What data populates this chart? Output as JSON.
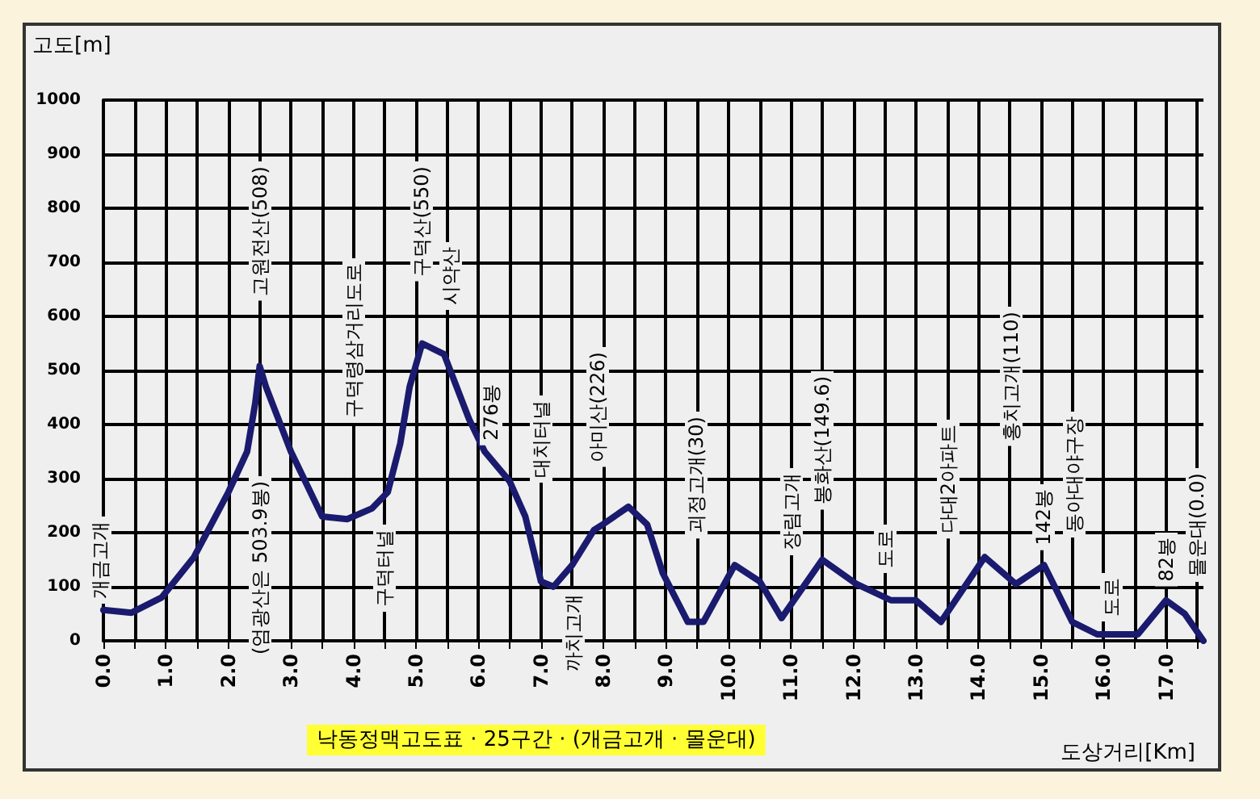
{
  "chart_data": {
    "type": "line",
    "title": "낙동정맥고도표 · 25구간 · (개금고개 · 몰운대)",
    "xlabel": "도상거리[Km]",
    "ylabel": "고도[m]",
    "x": [
      0,
      0.45,
      0.93,
      1.45,
      2.0,
      2.3,
      2.43,
      2.5,
      2.6,
      3.0,
      3.5,
      3.9,
      4.3,
      4.55,
      4.75,
      4.9,
      5.1,
      5.45,
      5.85,
      6.1,
      6.5,
      6.75,
      7.0,
      7.2,
      7.5,
      7.85,
      8.0,
      8.4,
      8.7,
      8.95,
      9.35,
      9.6,
      10.1,
      10.5,
      10.85,
      11.5,
      12.05,
      12.6,
      13.0,
      13.4,
      14.1,
      14.6,
      15.05,
      15.5,
      15.9,
      16.55,
      17.0,
      17.3,
      17.6
    ],
    "series": [
      {
        "color": "#1a1a6e",
        "values": [
          57,
          52,
          80,
          155,
          275,
          350,
          440,
          508,
          470,
          350,
          230,
          225,
          245,
          275,
          365,
          470,
          550,
          530,
          410,
          350,
          295,
          230,
          110,
          100,
          140,
          205,
          216,
          248,
          215,
          125,
          35,
          35,
          140,
          110,
          42,
          150,
          105,
          75,
          75,
          35,
          155,
          105,
          140,
          35,
          12,
          12,
          75,
          50,
          0
        ]
      }
    ],
    "xlim": [
      0,
      17.6
    ],
    "ylim": [
      0,
      1000
    ],
    "xticks": [
      {
        "value": 0,
        "label": "0.0"
      },
      {
        "value": 0.5,
        "label": null
      },
      {
        "value": 1,
        "label": "1.0"
      },
      {
        "value": 1.5,
        "label": null
      },
      {
        "value": 2,
        "label": "2.0"
      },
      {
        "value": 2.5,
        "label": null
      },
      {
        "value": 3,
        "label": "3.0"
      },
      {
        "value": 3.5,
        "label": null
      },
      {
        "value": 4,
        "label": "4.0"
      },
      {
        "value": 4.5,
        "label": null
      },
      {
        "value": 5,
        "label": "5.0"
      },
      {
        "value": 5.5,
        "label": null
      },
      {
        "value": 6,
        "label": "6.0"
      },
      {
        "value": 6.5,
        "label": null
      },
      {
        "value": 7,
        "label": "7.0"
      },
      {
        "value": 7.5,
        "label": null
      },
      {
        "value": 8,
        "label": "8.0"
      },
      {
        "value": 8.5,
        "label": null
      },
      {
        "value": 9,
        "label": "9.0"
      },
      {
        "value": 9.5,
        "label": null
      },
      {
        "value": 10,
        "label": "10.0"
      },
      {
        "value": 10.5,
        "label": null
      },
      {
        "value": 11,
        "label": "11.0"
      },
      {
        "value": 11.5,
        "label": null
      },
      {
        "value": 12,
        "label": "12.0"
      },
      {
        "value": 12.5,
        "label": null
      },
      {
        "value": 13,
        "label": "13.0"
      },
      {
        "value": 13.5,
        "label": null
      },
      {
        "value": 14,
        "label": "14.0"
      },
      {
        "value": 14.5,
        "label": null
      },
      {
        "value": 15,
        "label": "15.0"
      },
      {
        "value": 15.5,
        "label": null
      },
      {
        "value": 16,
        "label": "16.0"
      },
      {
        "value": 16.5,
        "label": null
      },
      {
        "value": 17,
        "label": "17.0"
      },
      {
        "value": 17.5,
        "label": null
      }
    ],
    "yticks": [
      0,
      100,
      200,
      300,
      400,
      500,
      600,
      700,
      800,
      900,
      1000
    ],
    "grid": true,
    "marker": "none",
    "line_style": "solid",
    "annotations": [
      "개금고개",
      "(엄광산은 503.9봉)",
      "고원전산(508)",
      "구덕령삼거리도로",
      "구덕터널",
      "구덕산(550)",
      "시약산",
      "276봉",
      "대치터널",
      "까치고개",
      "아미산(226)",
      "괴정고개(30)",
      "장림고개",
      "봉화산(149.6)",
      "도로",
      "다대2아파트",
      "홍치고개(110)",
      "142봉",
      "동아대야구장",
      "도로",
      "82봉",
      "몰운대(0.0)"
    ]
  }
}
